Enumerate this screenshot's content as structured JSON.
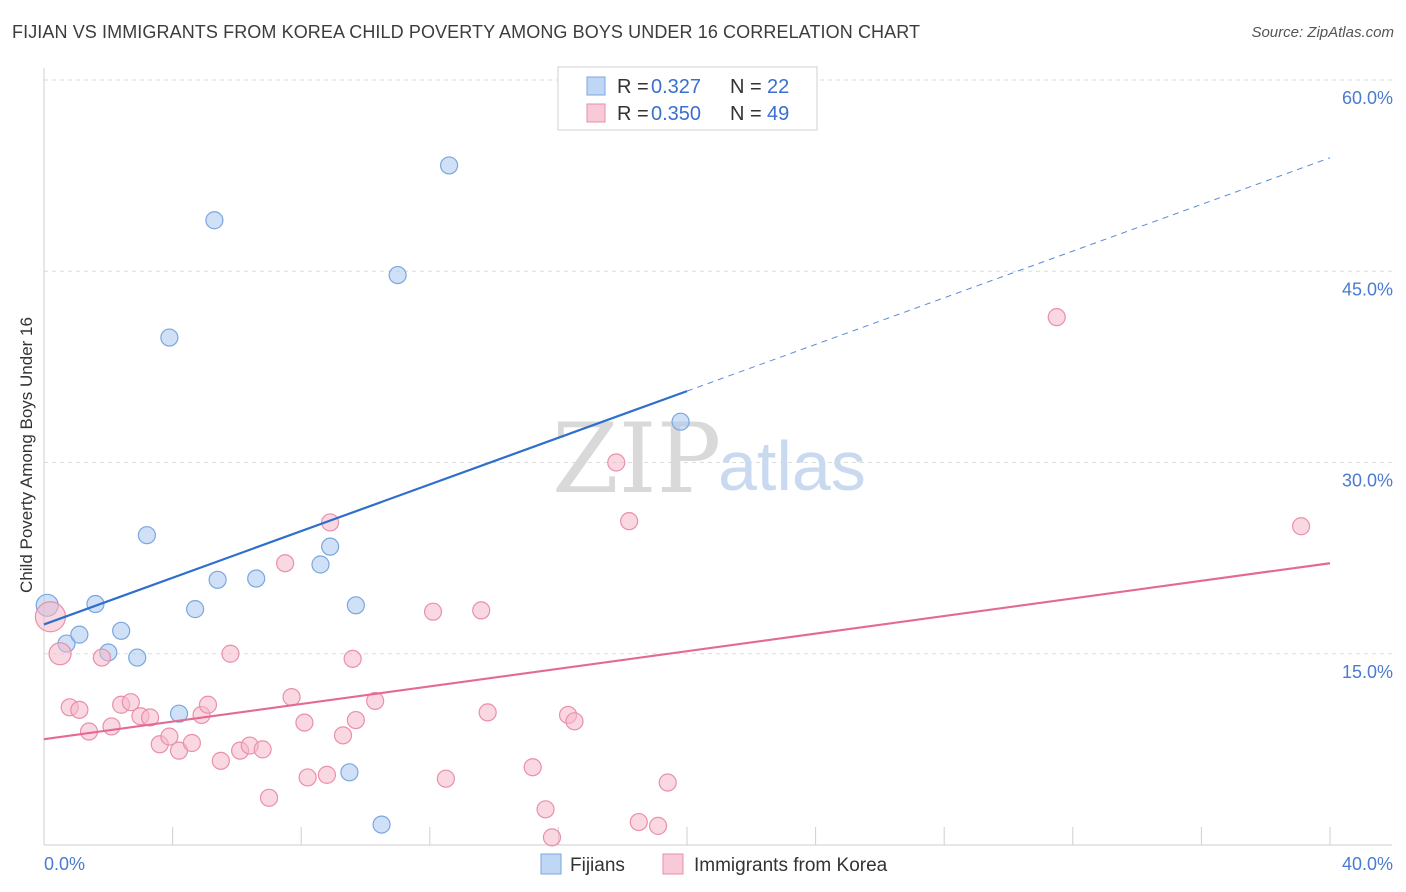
{
  "title": "FIJIAN VS IMMIGRANTS FROM KOREA CHILD POVERTY AMONG BOYS UNDER 16 CORRELATION CHART",
  "source": "Source: ZipAtlas.com",
  "watermark": {
    "zip": "ZIP",
    "atlas": "atlas"
  },
  "chart_data": {
    "type": "scatter",
    "xlim": [
      0,
      40
    ],
    "ylim": [
      0,
      60
    ],
    "ylabel": "Child Poverty Among Boys Under 16",
    "y_ticks": [
      {
        "value": 15,
        "label": "15.0%"
      },
      {
        "value": 30,
        "label": "30.0%"
      },
      {
        "value": 45,
        "label": "45.0%"
      },
      {
        "value": 60,
        "label": "60.0%"
      }
    ],
    "x_ticks": [
      {
        "value": 0,
        "label": "0.0%"
      },
      {
        "value": 40,
        "label": "40.0%"
      }
    ],
    "grid": "horizontal dashed",
    "legend": {
      "position": "top-center",
      "entries": [
        {
          "r_label": "R = ",
          "r_value": "0.327",
          "n_label": "N = ",
          "n_value": "22",
          "color": "#a9c8f0"
        },
        {
          "r_label": "R = ",
          "r_value": "0.350",
          "n_label": "N = ",
          "n_value": "49",
          "color": "#f5b8cb"
        }
      ]
    },
    "series": [
      {
        "name": "Fijians",
        "color": "#a9c8f0",
        "stroke": "#7aa6df",
        "trend_color": "#2f6fcc",
        "trend": {
          "x0": 0,
          "y0": 17.3,
          "x1": 20,
          "y1": 35.6,
          "dash_to_x": 40,
          "dash_to_y": 53.9
        },
        "points": [
          [
            0.1,
            18.8
          ],
          [
            0.7,
            15.8
          ],
          [
            1.1,
            16.5
          ],
          [
            1.6,
            18.9
          ],
          [
            2.0,
            15.1
          ],
          [
            2.4,
            16.8
          ],
          [
            2.9,
            14.7
          ],
          [
            3.2,
            24.3
          ],
          [
            3.9,
            39.8
          ],
          [
            4.2,
            10.3
          ],
          [
            4.7,
            18.5
          ],
          [
            5.3,
            49.0
          ],
          [
            5.4,
            20.8
          ],
          [
            6.6,
            20.9
          ],
          [
            8.6,
            22.0
          ],
          [
            8.9,
            23.4
          ],
          [
            9.5,
            5.7
          ],
          [
            9.7,
            18.8
          ],
          [
            10.5,
            1.6
          ],
          [
            11.0,
            44.7
          ],
          [
            12.6,
            53.3
          ],
          [
            19.8,
            33.2
          ]
        ]
      },
      {
        "name": "Immigrants from Korea",
        "color": "#f5b8cb",
        "stroke": "#ea8fab",
        "trend_color": "#e46a95",
        "trend": {
          "x0": 0,
          "y0": 8.3,
          "x1": 40,
          "y1": 22.1
        },
        "points": [
          [
            0.2,
            17.9
          ],
          [
            0.5,
            15.0
          ],
          [
            0.8,
            10.8
          ],
          [
            1.1,
            10.6
          ],
          [
            1.4,
            8.9
          ],
          [
            1.8,
            14.7
          ],
          [
            2.1,
            9.3
          ],
          [
            2.4,
            11.0
          ],
          [
            2.7,
            11.2
          ],
          [
            3.0,
            10.1
          ],
          [
            3.3,
            10.0
          ],
          [
            3.6,
            7.9
          ],
          [
            3.9,
            8.5
          ],
          [
            4.2,
            7.4
          ],
          [
            4.6,
            8.0
          ],
          [
            4.9,
            10.2
          ],
          [
            5.1,
            11.0
          ],
          [
            5.5,
            6.6
          ],
          [
            5.8,
            15.0
          ],
          [
            6.1,
            7.4
          ],
          [
            6.4,
            7.8
          ],
          [
            6.8,
            7.5
          ],
          [
            7.0,
            3.7
          ],
          [
            7.5,
            22.1
          ],
          [
            7.7,
            11.6
          ],
          [
            8.1,
            9.6
          ],
          [
            8.2,
            5.3
          ],
          [
            8.8,
            5.5
          ],
          [
            8.9,
            25.3
          ],
          [
            9.3,
            8.6
          ],
          [
            9.6,
            14.6
          ],
          [
            9.7,
            9.8
          ],
          [
            10.3,
            11.3
          ],
          [
            12.1,
            18.3
          ],
          [
            12.5,
            5.2
          ],
          [
            13.6,
            18.4
          ],
          [
            13.8,
            10.4
          ],
          [
            15.2,
            6.1
          ],
          [
            15.6,
            2.8
          ],
          [
            15.8,
            0.6
          ],
          [
            16.3,
            10.2
          ],
          [
            16.5,
            9.7
          ],
          [
            17.8,
            30.0
          ],
          [
            18.2,
            25.4
          ],
          [
            18.5,
            1.8
          ],
          [
            19.1,
            1.5
          ],
          [
            19.4,
            4.9
          ],
          [
            31.5,
            41.4
          ],
          [
            39.1,
            25.0
          ]
        ]
      }
    ]
  }
}
